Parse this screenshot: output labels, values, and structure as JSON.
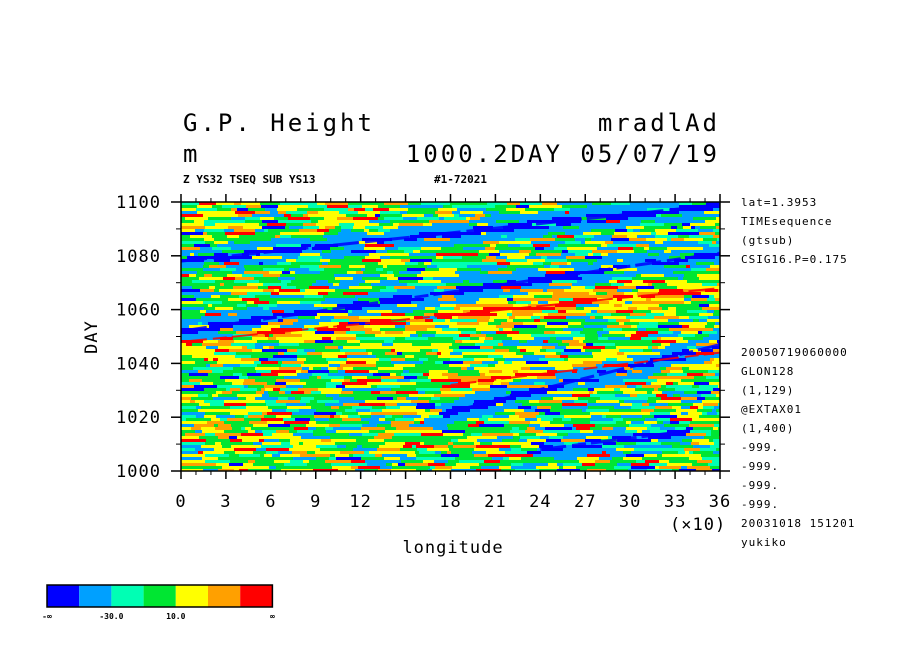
{
  "header": {
    "title_left": "G.P. Height",
    "title_right": "mradlAd",
    "unit": "m",
    "level_date": "1000.2DAY 05/07/19",
    "sub_left": "Z YS32 TSEQ SUB YS13",
    "sub_right": "#1-72021"
  },
  "side_info": {
    "top": [
      "lat=1.3953",
      "TIMEsequence",
      "(gtsub)",
      "CSIG16.P=0.175"
    ],
    "bottom": [
      "20050719060000",
      "GLON128",
      "(1,129)",
      "@EXTAX01",
      "(1,400)",
      "-999.",
      "-999.",
      "-999.",
      "-999.",
      "20031018 151201",
      "yukiko"
    ]
  },
  "colorbar": {
    "colors": [
      "#0000ff",
      "#00a0ff",
      "#00ffb4",
      "#00e632",
      "#ffff00",
      "#ffa000",
      "#ff0000"
    ],
    "labels": [
      "-∞",
      "-30.0",
      "10.0",
      "∞"
    ]
  },
  "chart_data": {
    "type": "heatmap",
    "title": "G.P. Height",
    "xlabel": "longitude",
    "ylabel": "DAY",
    "x_multiplier_label": "(×10)",
    "xlim": [
      0,
      36
    ],
    "ylim": [
      1000,
      1100
    ],
    "x_ticks": [
      "0",
      "3",
      "6",
      "9",
      "12",
      "15",
      "18",
      "21",
      "24",
      "27",
      "30",
      "33",
      "36"
    ],
    "y_ticks": [
      "1000",
      "1020",
      "1040",
      "1060",
      "1080",
      "1100"
    ],
    "features": [
      {
        "kind": "low-band",
        "from": [
          0,
          1052
        ],
        "to": [
          36,
          1081
        ]
      },
      {
        "kind": "low-band",
        "from": [
          0,
          1078
        ],
        "to": [
          36,
          1099
        ]
      },
      {
        "kind": "low-band",
        "from": [
          18,
          1022
        ],
        "to": [
          36,
          1047
        ]
      },
      {
        "kind": "low-band",
        "from": [
          24,
          1008
        ],
        "to": [
          34,
          1015
        ]
      },
      {
        "kind": "high-band",
        "from": [
          0,
          1048
        ],
        "to": [
          36,
          1068
        ]
      },
      {
        "kind": "high-band",
        "from": [
          18,
          1032
        ],
        "to": [
          36,
          1044
        ]
      }
    ]
  }
}
